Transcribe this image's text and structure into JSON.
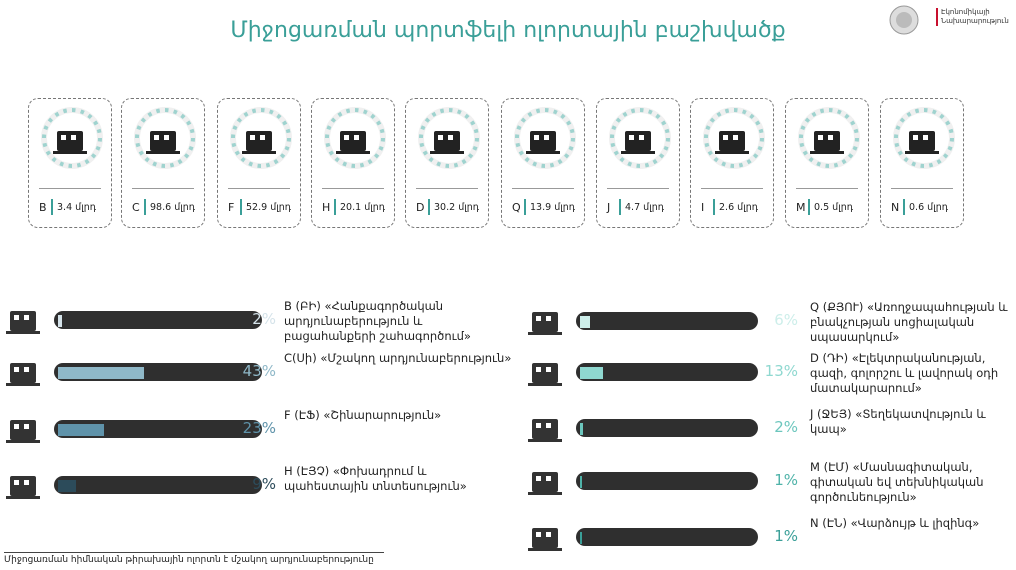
{
  "header": {
    "title": "Միջոցառման պորտֆելի ոլորտային բաշխվածք",
    "logo_text": "Էկոնոմիկայի Նախարարություն"
  },
  "cards": [
    {
      "code": "B",
      "amount": 3.4,
      "unit": "մլրդ"
    },
    {
      "code": "C",
      "amount": 98.6,
      "unit": "մլրդ"
    },
    {
      "code": "F",
      "amount": 52.9,
      "unit": "մլրդ"
    },
    {
      "code": "H",
      "amount": 20.1,
      "unit": "մլրդ"
    },
    {
      "code": "D",
      "amount": 30.2,
      "unit": "մլրդ"
    },
    {
      "code": "Q",
      "amount": 13.9,
      "unit": "մլրդ"
    },
    {
      "code": "J",
      "amount": 4.7,
      "unit": "մլրդ"
    },
    {
      "code": "I",
      "amount": 2.6,
      "unit": "մլրդ"
    },
    {
      "code": "M",
      "amount": 0.5,
      "unit": "մլրդ"
    },
    {
      "code": "N",
      "amount": 0.6,
      "unit": "մլրդ"
    }
  ],
  "left_sectors": [
    {
      "value": 2,
      "value_label": "2%",
      "label": "B (ԲԻ) «Հանքագործական արդյունաբերություն և բացահանքերի շահագործում»",
      "color": "#d5e3ea"
    },
    {
      "value": 43,
      "value_label": "43%",
      "label": "C(Սի) «Մշակող արդյունաբերություն»",
      "color": "#8fb8c8"
    },
    {
      "value": 23,
      "value_label": "23%",
      "label": "F (ԷՖ) «Շինարարություն»",
      "color": "#5f93aa"
    },
    {
      "value": 9,
      "value_label": "9%",
      "label": "H (ԷՅՉ) «Փոխադրում և պահեստային տնտեսություն»",
      "color": "#2c4b5a"
    }
  ],
  "right_sectors": [
    {
      "value": 6,
      "value_label": "6%",
      "label": "Q (ՔՅՈՒ) «Առողջապահության և բնակչության սոցիալական սպասարկում»",
      "color": "#cdeeea"
    },
    {
      "value": 13,
      "value_label": "13%",
      "label": "D (ԴԻ) «Էլեկտրականության, գազի, գոլորշու և լավորակ օդի մատակարարում»",
      "color": "#8fd8d0"
    },
    {
      "value": 2,
      "value_label": "2%",
      "label": "J (ՋԵՅ) «Տեղեկատվություն և կապ»",
      "color": "#6cc6bd"
    },
    {
      "value": 1,
      "value_label": "1%",
      "label": "M (ԷՄ) «Մասնագիտական, գիտական եվ տեխնիկական գործունեություն»",
      "color": "#4fb3a9"
    },
    {
      "value": 1,
      "value_label": "1%",
      "label": "N (ԷՆ) «Վարձույթ և լիզինգ»",
      "color": "#3a9f98"
    }
  ],
  "footnote": "Միջոցառման հիմնական թիրախային ոլորտն է մշակող արդյունաբերությունը"
}
